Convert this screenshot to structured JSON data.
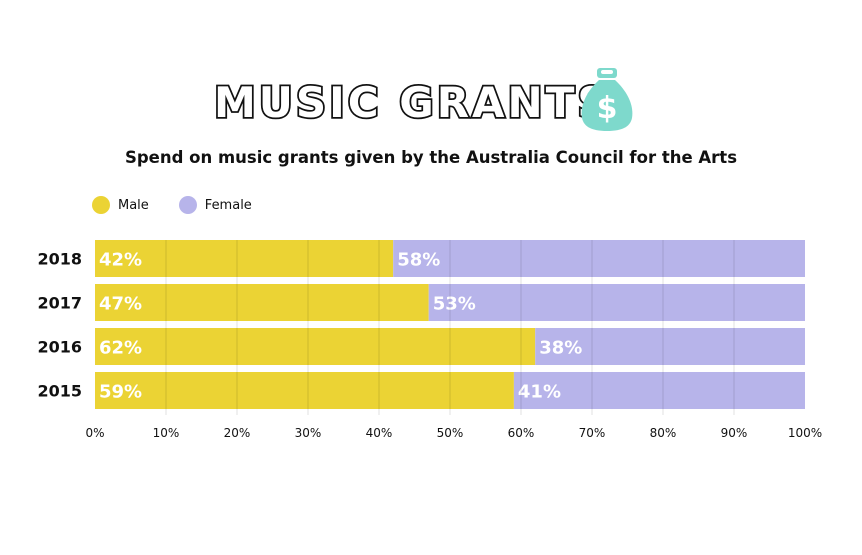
{
  "title": "MUSIC GRANTS",
  "subtitle": "Spend on music grants given by the Australia Council for the Arts",
  "icon": "money-bag-icon",
  "colors": {
    "male": "#EBD334",
    "female": "#B7B4EA",
    "bag": "#7ED9CC"
  },
  "legend": [
    {
      "label": "Male",
      "color": "#EBD334"
    },
    {
      "label": "Female",
      "color": "#B7B4EA"
    }
  ],
  "chart_data": {
    "type": "bar",
    "stacked": true,
    "orientation": "horizontal",
    "categories": [
      "2018",
      "2017",
      "2016",
      "2015"
    ],
    "series": [
      {
        "name": "Male",
        "values": [
          42,
          47,
          62,
          59
        ],
        "labels": [
          "42%",
          "47%",
          "62%",
          "59%"
        ]
      },
      {
        "name": "Female",
        "values": [
          58,
          53,
          38,
          41
        ],
        "labels": [
          "58%",
          "53%",
          "38%",
          "41%"
        ]
      }
    ],
    "xlim": [
      0,
      100
    ],
    "xticks": [
      "0%",
      "10%",
      "20%",
      "30%",
      "40%",
      "50%",
      "60%",
      "70%",
      "80%",
      "90%",
      "100%"
    ],
    "grid": true,
    "legend_position": "top-left"
  }
}
